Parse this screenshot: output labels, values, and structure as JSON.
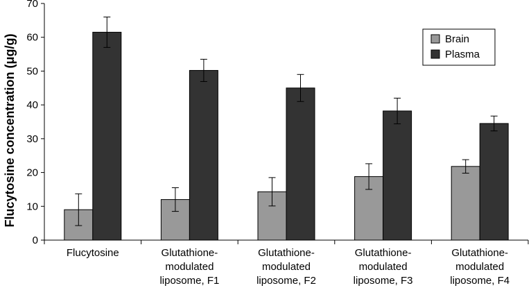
{
  "chart_data": {
    "type": "bar",
    "title": "",
    "xlabel": "",
    "ylabel": "Flucytosine concentration (μg/g)",
    "ylim": [
      0,
      70
    ],
    "yticks": [
      0,
      10,
      20,
      30,
      40,
      50,
      60,
      70
    ],
    "grid": false,
    "legend_position": "top-right",
    "categories": [
      [
        "Flucytosine"
      ],
      [
        "Glutathione-",
        "modulated",
        "liposome, F1"
      ],
      [
        "Glutathione-",
        "modulated",
        "liposome, F2"
      ],
      [
        "Glutathione-",
        "modulated",
        "liposome, F3"
      ],
      [
        "Glutathione-",
        "modulated",
        "liposome, F4"
      ]
    ],
    "series": [
      {
        "name": "Brain",
        "color": "#999999",
        "values": [
          9,
          12,
          14.3,
          18.8,
          21.8
        ],
        "errors": [
          4.7,
          3.5,
          4.2,
          3.8,
          2.0
        ]
      },
      {
        "name": "Plasma",
        "color": "#333333",
        "values": [
          61.5,
          50.2,
          45,
          38.2,
          34.5
        ],
        "errors": [
          4.5,
          3.3,
          4.0,
          3.8,
          2.2
        ]
      }
    ]
  }
}
